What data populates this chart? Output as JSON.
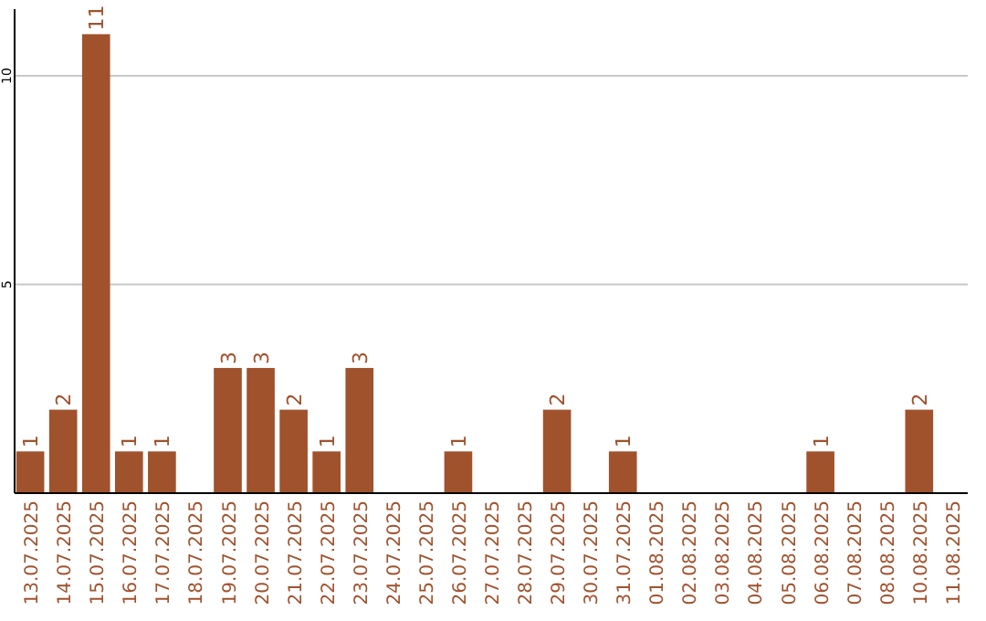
{
  "chart_data": {
    "type": "bar",
    "categories": [
      "13.07.2025",
      "14.07.2025",
      "15.07.2025",
      "16.07.2025",
      "17.07.2025",
      "18.07.2025",
      "19.07.2025",
      "20.07.2025",
      "21.07.2025",
      "22.07.2025",
      "23.07.2025",
      "24.07.2025",
      "25.07.2025",
      "26.07.2025",
      "27.07.2025",
      "28.07.2025",
      "29.07.2025",
      "30.07.2025",
      "31.07.2025",
      "01.08.2025",
      "02.08.2025",
      "03.08.2025",
      "04.08.2025",
      "05.08.2025",
      "06.08.2025",
      "07.08.2025",
      "08.08.2025",
      "10.08.2025",
      "11.08.2025"
    ],
    "values": [
      1,
      2,
      11,
      1,
      1,
      0,
      3,
      3,
      2,
      1,
      3,
      0,
      0,
      1,
      0,
      0,
      2,
      0,
      1,
      0,
      0,
      0,
      0,
      0,
      1,
      0,
      0,
      2,
      0
    ],
    "value_labels": [
      "1",
      "2",
      "11",
      "1",
      "1",
      null,
      "3",
      "3",
      "2",
      "1",
      "3",
      null,
      null,
      "1",
      null,
      null,
      "2",
      null,
      "1",
      null,
      null,
      null,
      null,
      null,
      "1",
      null,
      null,
      "2",
      null
    ],
    "color": "#a0522d",
    "ylim": [
      0,
      11.6
    ],
    "yticks": [
      5,
      10
    ],
    "grid": "y"
  }
}
